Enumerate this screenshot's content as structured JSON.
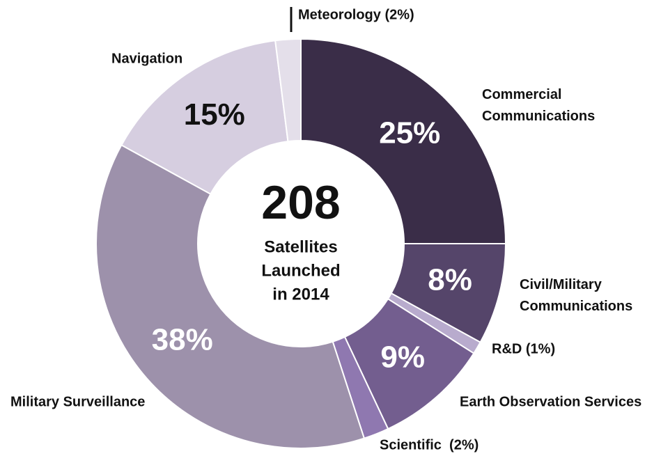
{
  "chart_data": {
    "type": "donut",
    "categories": [
      "Commercial Communications",
      "Civil/Military Communications",
      "R&D (1%)",
      "Earth Observation Services",
      "Scientific  (2%)",
      "Military Surveillance",
      "Navigation",
      "Meteorology (2%)"
    ],
    "values": [
      25,
      8,
      1,
      9,
      2,
      38,
      15,
      2
    ],
    "value_labels": [
      "25%",
      "8%",
      null,
      "9%",
      null,
      "38%",
      "15%",
      null
    ],
    "colors": [
      "#3a2d48",
      "#55456a",
      "#b8abcd",
      "#735e8f",
      "#8f78b0",
      "#9d91ab",
      "#d6cee0",
      "#e4dfea"
    ],
    "center_value": 208,
    "center_label": [
      "Satellites",
      "Launched",
      "in 2014"
    ]
  }
}
